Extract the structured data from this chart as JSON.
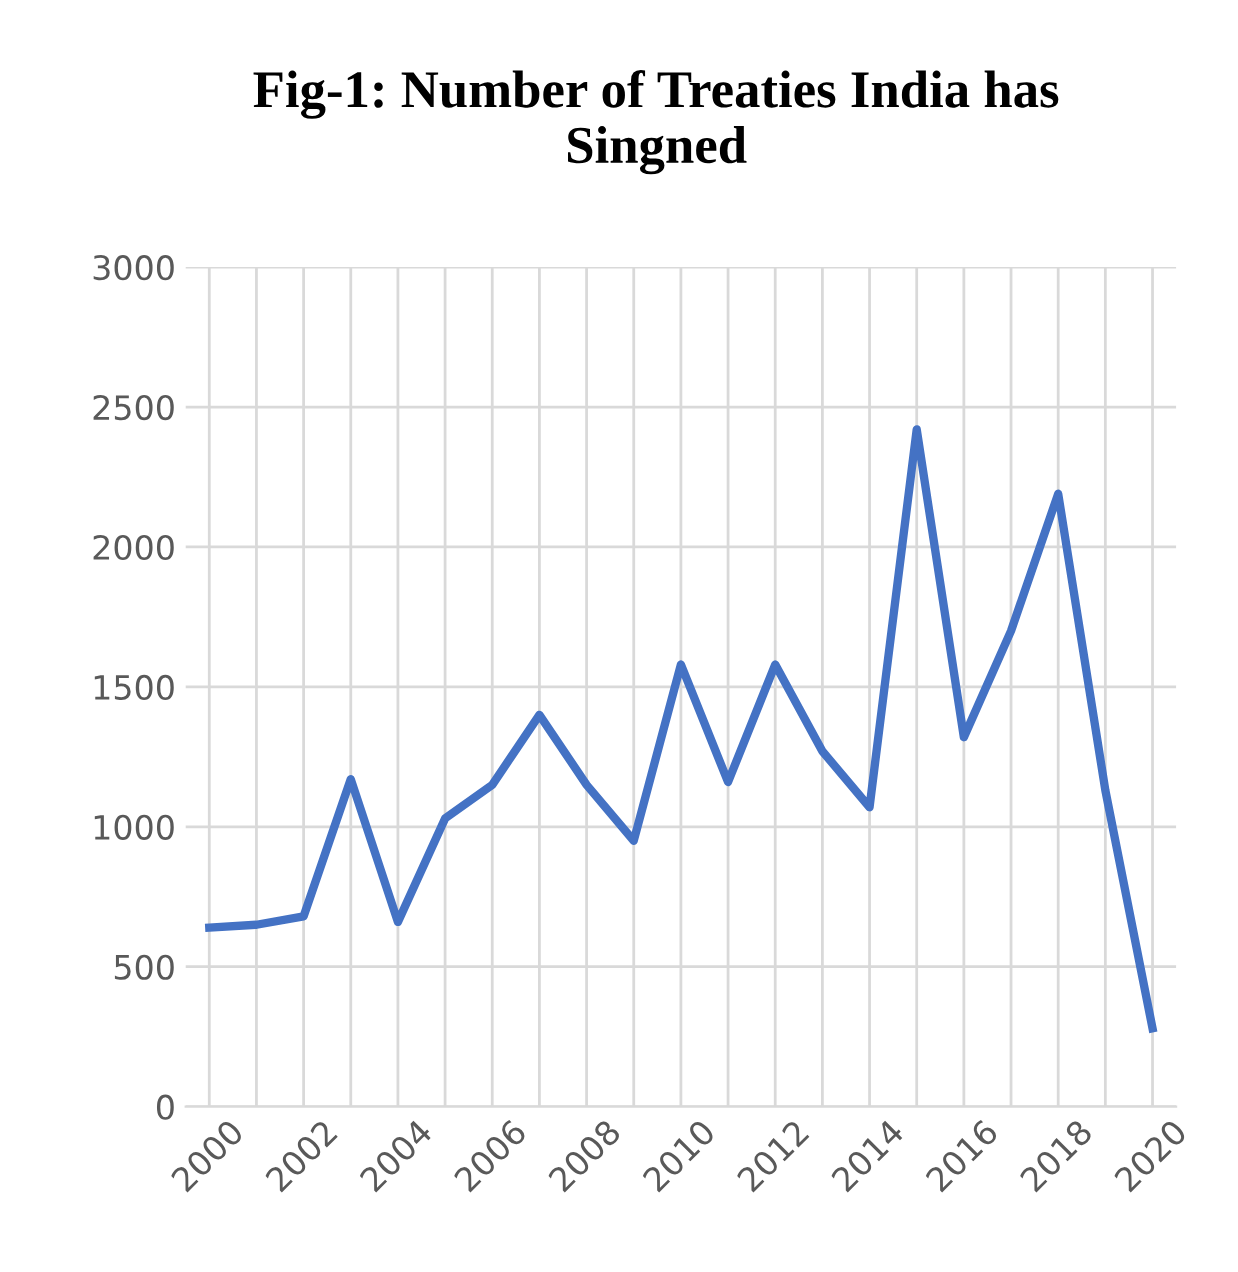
{
  "chart_data": {
    "type": "line",
    "title": "Fig-1: Number of Treaties India has Singned",
    "categories": [
      "2000",
      null,
      "2002",
      null,
      "2004",
      null,
      "2006",
      null,
      "2008",
      null,
      "2010",
      null,
      "2012",
      null,
      "2014",
      null,
      "2016",
      null,
      "2018",
      null,
      "2020"
    ],
    "series": [
      {
        "color": "#4472c4",
        "values": [
          640,
          650,
          680,
          1170,
          660,
          1030,
          1150,
          1400,
          1150,
          950,
          1580,
          1160,
          1580,
          1270,
          1070,
          2420,
          1320,
          1700,
          2190,
          1130,
          280
        ]
      }
    ],
    "ylim": [
      0,
      3000
    ],
    "yticks": [
      0,
      500,
      1000,
      1500,
      2000,
      2500,
      3000
    ],
    "grid": true,
    "marker": "none",
    "line_style": "solid"
  }
}
